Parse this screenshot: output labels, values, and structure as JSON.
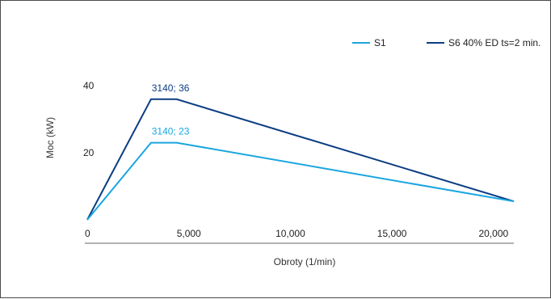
{
  "chart_data": {
    "type": "line",
    "title": "",
    "xlabel": "Obroty (1/min)",
    "ylabel": "Moc (kW)",
    "xlim": [
      0,
      21000
    ],
    "ylim": [
      0,
      48
    ],
    "x_ticks": [
      0,
      5000,
      10000,
      15000,
      20000
    ],
    "x_tick_labels": [
      "0",
      "5,000",
      "10,000",
      "15,000",
      "20,000"
    ],
    "y_ticks": [
      20,
      40
    ],
    "y_tick_labels": [
      "20",
      "40"
    ],
    "grid": false,
    "legend_position": "top-right",
    "series": [
      {
        "name": "S1",
        "color": "#1aa6e0",
        "x": [
          0,
          3140,
          4400,
          21000
        ],
        "y": [
          0,
          23,
          23,
          5.5
        ]
      },
      {
        "name": "S6 40% ED ts=2 min.",
        "color": "#0b3d82",
        "x": [
          0,
          3140,
          4400,
          21000
        ],
        "y": [
          0,
          36,
          36,
          5.5
        ]
      }
    ],
    "annotations": [
      {
        "text": "3140; 36",
        "x": 4100,
        "y": 36,
        "color": "#0b3d82"
      },
      {
        "text": "3140; 23",
        "x": 4100,
        "y": 23,
        "color": "#1aa6e0"
      }
    ]
  }
}
